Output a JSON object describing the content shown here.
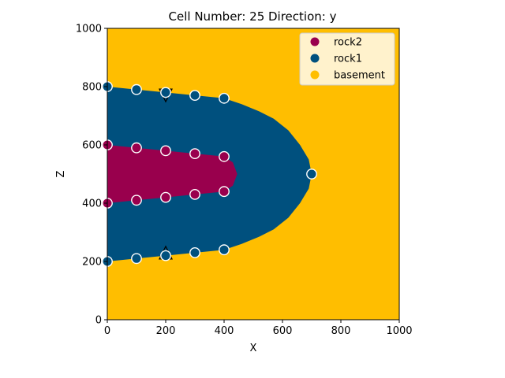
{
  "chart_data": {
    "type": "scatter",
    "title": "Cell Number: 25 Direction: y",
    "xlabel": "X",
    "ylabel": "Z",
    "xlim": [
      0,
      1000
    ],
    "ylim": [
      0,
      1000
    ],
    "xticks": [
      "0",
      "200",
      "400",
      "600",
      "800",
      "1000"
    ],
    "yticks": [
      "0",
      "200",
      "400",
      "600",
      "800",
      "1000"
    ],
    "grid": false,
    "legend_position": "top-right",
    "legend": [
      {
        "name": "rock2",
        "color": "#99004d"
      },
      {
        "name": "rock1",
        "color": "#00507e"
      },
      {
        "name": "basement",
        "color": "#ffbe00"
      }
    ],
    "regions": {
      "rock1_outline": [
        [
          0,
          800
        ],
        [
          100,
          790
        ],
        [
          200,
          780
        ],
        [
          300,
          770
        ],
        [
          400,
          760
        ],
        [
          460,
          740
        ],
        [
          520,
          715
        ],
        [
          570,
          690
        ],
        [
          620,
          650
        ],
        [
          660,
          600
        ],
        [
          690,
          550
        ],
        [
          700,
          500
        ],
        [
          690,
          450
        ],
        [
          660,
          400
        ],
        [
          620,
          350
        ],
        [
          570,
          310
        ],
        [
          520,
          285
        ],
        [
          460,
          260
        ],
        [
          400,
          240
        ],
        [
          300,
          230
        ],
        [
          200,
          220
        ],
        [
          100,
          210
        ],
        [
          0,
          200
        ]
      ],
      "rock2_outline": [
        [
          0,
          600
        ],
        [
          100,
          590
        ],
        [
          200,
          580
        ],
        [
          300,
          570
        ],
        [
          400,
          560
        ],
        [
          430,
          540
        ],
        [
          445,
          500
        ],
        [
          430,
          460
        ],
        [
          400,
          440
        ],
        [
          300,
          430
        ],
        [
          200,
          420
        ],
        [
          100,
          410
        ],
        [
          0,
          400
        ]
      ]
    },
    "surface_points": [
      {
        "series": "rock2",
        "x": 0,
        "z": 600
      },
      {
        "series": "rock2",
        "x": 100,
        "z": 590
      },
      {
        "series": "rock2",
        "x": 200,
        "z": 580
      },
      {
        "series": "rock2",
        "x": 300,
        "z": 570
      },
      {
        "series": "rock2",
        "x": 400,
        "z": 560
      },
      {
        "series": "rock2",
        "x": 0,
        "z": 400
      },
      {
        "series": "rock2",
        "x": 100,
        "z": 410
      },
      {
        "series": "rock2",
        "x": 200,
        "z": 420
      },
      {
        "series": "rock2",
        "x": 300,
        "z": 430
      },
      {
        "series": "rock2",
        "x": 400,
        "z": 440
      },
      {
        "series": "rock1",
        "x": 0,
        "z": 800
      },
      {
        "series": "rock1",
        "x": 100,
        "z": 790
      },
      {
        "series": "rock1",
        "x": 200,
        "z": 780
      },
      {
        "series": "rock1",
        "x": 300,
        "z": 770
      },
      {
        "series": "rock1",
        "x": 400,
        "z": 760
      },
      {
        "series": "rock1",
        "x": 0,
        "z": 200
      },
      {
        "series": "rock1",
        "x": 100,
        "z": 210
      },
      {
        "series": "rock1",
        "x": 200,
        "z": 220
      },
      {
        "series": "rock1",
        "x": 300,
        "z": 230
      },
      {
        "series": "rock1",
        "x": 400,
        "z": 240
      },
      {
        "series": "rock1",
        "x": 700,
        "z": 500
      }
    ],
    "orientations": [
      {
        "x": 200,
        "z": 770,
        "pointing": "down"
      },
      {
        "x": 200,
        "z": 230,
        "pointing": "up"
      }
    ]
  }
}
